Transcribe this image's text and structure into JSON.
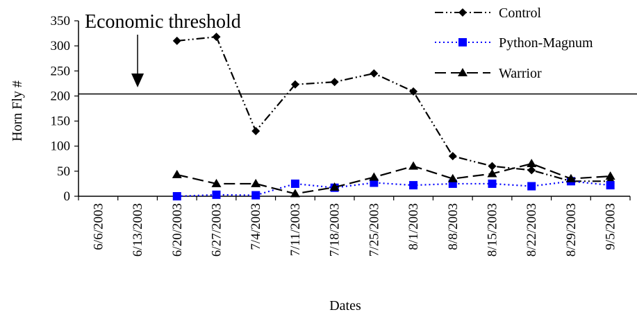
{
  "chart_data": {
    "type": "line",
    "xlabel": "Dates",
    "ylabel": "Horn Fly #",
    "ylim": [
      0,
      350
    ],
    "yticks": [
      0,
      50,
      100,
      150,
      200,
      250,
      300,
      350
    ],
    "categories": [
      "6/6/2003",
      "6/13/2003",
      "6/20/2003",
      "6/27/2003",
      "7/4/2003",
      "7/11/2003",
      "7/18/2003",
      "7/25/2003",
      "8/1/2003",
      "8/8/2003",
      "8/15/2003",
      "8/22/2003",
      "8/29/2003",
      "9/5/2003"
    ],
    "series": [
      {
        "name": "Control",
        "color": "#000000",
        "marker": "diamond",
        "dash": "dash-dot-dot",
        "values": [
          null,
          null,
          310,
          318,
          130,
          223,
          228,
          245,
          209,
          80,
          60,
          52,
          30,
          30
        ]
      },
      {
        "name": "Python-Magnum",
        "color": "#0000ff",
        "marker": "square",
        "dash": "dotted",
        "values": [
          null,
          null,
          0,
          3,
          2,
          25,
          17,
          27,
          22,
          25,
          25,
          20,
          30,
          22
        ]
      },
      {
        "name": "Warrior",
        "color": "#000000",
        "marker": "triangle",
        "dash": "long-dash",
        "values": [
          null,
          null,
          43,
          25,
          25,
          5,
          18,
          38,
          60,
          35,
          45,
          65,
          35,
          40
        ]
      }
    ],
    "threshold": {
      "label": "Economic threshold",
      "value": 204,
      "arrow_at": "6/13/2003"
    },
    "legend_position": "top-right",
    "grid": false
  }
}
